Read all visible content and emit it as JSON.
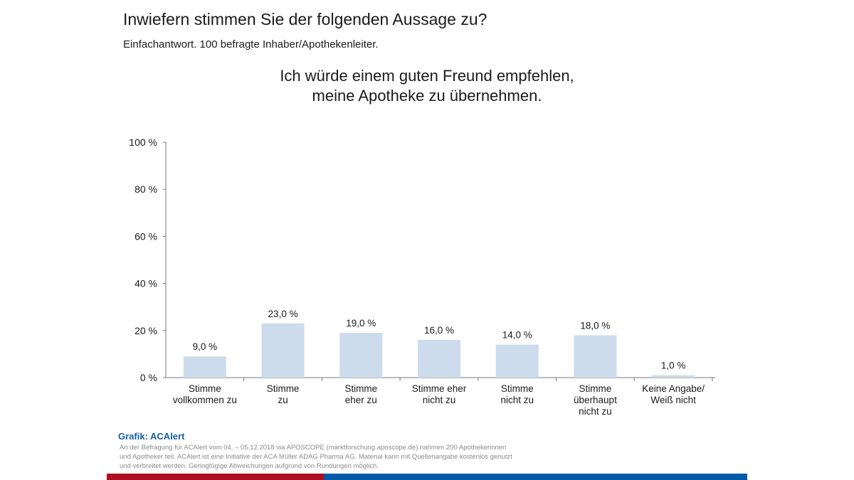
{
  "header": {
    "title": "Inwiefern stimmen Sie der folgenden Aussage zu?",
    "subtitle": "Einfachantwort. 100 befragte Inhaber/Apothekenleiter."
  },
  "chart_data": {
    "type": "bar",
    "title": "Ich würde einem guten Freund empfehlen, meine Apotheke zu übernehmen.",
    "title_lines": [
      "Ich würde einem guten Freund empfehlen,",
      "meine Apotheke zu übernehmen."
    ],
    "categories": [
      [
        "Stimme",
        "vollkommen zu"
      ],
      [
        "Stimme",
        "zu"
      ],
      [
        "Stimme",
        "eher zu"
      ],
      [
        "Stimme eher",
        "nicht zu"
      ],
      [
        "Stimme",
        "nicht zu"
      ],
      [
        "Stimme",
        "überhaupt",
        "nicht zu"
      ],
      [
        "Keine Angabe/",
        "Weiß nicht"
      ]
    ],
    "values": [
      9.0,
      23.0,
      19.0,
      16.0,
      14.0,
      18.0,
      1.0
    ],
    "data_labels": [
      "9,0 %",
      "23,0 %",
      "19,0 %",
      "16,0 %",
      "14,0 %",
      "18,0 %",
      "1,0 %"
    ],
    "ylim": [
      0,
      100
    ],
    "yticks": [
      0,
      20,
      40,
      60,
      80,
      100
    ],
    "ytick_labels": [
      "0 %",
      "20 %",
      "40 %",
      "60 %",
      "80 %",
      "100 %"
    ],
    "xlabel": "",
    "ylabel": "",
    "grid": false,
    "bar_color": "#ccdcec"
  },
  "footer": {
    "source": "Grafik: ACAlert",
    "note": "An der Befragung für ACAlert vom 04. – 05.12.2018 via APOSCOPE (marktforschung.aposcope.de) nahmen 200 Apothekerinnen und Apotheker teil. ACAlert ist eine Initiative der ACA Müller ADAG Pharma AG. Material kann mit Quellenangabe kostenlos genutzt und verbreitet werden. Geringfügige Abweichungen aufgrund von Rundungen möglich.",
    "colors": {
      "red": "#ad1020",
      "blue": "#005aa8"
    }
  }
}
